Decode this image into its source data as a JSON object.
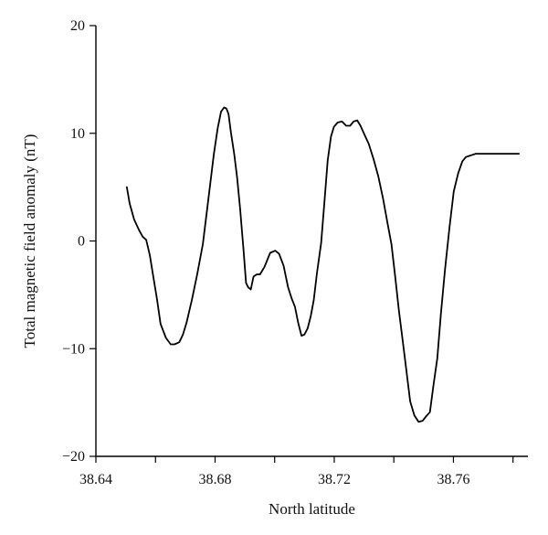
{
  "chart_data": {
    "type": "line",
    "title": "",
    "xlabel": "North latitude",
    "ylabel": "Total magnetic field anomaly (nT)",
    "xlim": [
      38.64,
      38.785
    ],
    "ylim": [
      -20,
      20
    ],
    "x_ticks": [
      38.64,
      38.68,
      38.72,
      38.76
    ],
    "x_tick_labels": [
      "38.64",
      "38.68",
      "38.72",
      "38.76"
    ],
    "x_minor_ticks": [
      38.66,
      38.7,
      38.74,
      38.78
    ],
    "y_ticks": [
      -20,
      -10,
      0,
      10,
      20
    ],
    "y_tick_labels": [
      "−20",
      "−10",
      "0",
      "10",
      "20"
    ],
    "grid": false,
    "series": [
      {
        "color": "#000000",
        "x": [
          38.6504,
          38.6513,
          38.6528,
          38.6545,
          38.6557,
          38.6569,
          38.6581,
          38.6593,
          38.6605,
          38.6617,
          38.6635,
          38.6651,
          38.6664,
          38.668,
          38.6692,
          38.6704,
          38.6722,
          38.674,
          38.6759,
          38.6779,
          38.6796,
          38.6809,
          38.682,
          38.683,
          38.6838,
          38.6845,
          38.6853,
          38.6864,
          38.6874,
          38.6884,
          38.6895,
          38.6904,
          38.6911,
          38.692,
          38.6929,
          38.694,
          38.6951,
          38.6966,
          38.6985,
          38.7002,
          38.7015,
          38.703,
          38.7045,
          38.7058,
          38.7068,
          38.7079,
          38.709,
          38.71,
          38.7111,
          38.7121,
          38.7131,
          38.7142,
          38.7156,
          38.7167,
          38.7178,
          38.7189,
          38.7199,
          38.7211,
          38.7226,
          38.724,
          38.7253,
          38.7265,
          38.7277,
          38.7288,
          38.7301,
          38.7316,
          38.7332,
          38.7348,
          38.7364,
          38.7379,
          38.7392,
          38.7405,
          38.7417,
          38.7429,
          38.7442,
          38.7455,
          38.7469,
          38.7483,
          38.7497,
          38.7508,
          38.7521,
          38.7533,
          38.7546,
          38.7558,
          38.7572,
          38.7587,
          38.7601,
          38.7616,
          38.763,
          38.7642,
          38.7653,
          38.7664,
          38.7675,
          38.7688,
          38.7702,
          38.7716,
          38.7731,
          38.7745,
          38.7758,
          38.7769,
          38.7777,
          38.7784,
          38.7792,
          38.7803,
          38.7812,
          38.782
        ],
        "y": [
          5.0,
          3.5,
          2.0,
          1.0,
          0.4,
          0.1,
          -1.3,
          -3.4,
          -5.4,
          -7.7,
          -9.0,
          -9.6,
          -9.6,
          -9.4,
          -8.7,
          -7.6,
          -5.5,
          -3.1,
          -0.3,
          4.2,
          8.1,
          10.5,
          12.0,
          12.4,
          12.3,
          11.8,
          10.1,
          8.1,
          5.9,
          3.0,
          -0.7,
          -3.9,
          -4.3,
          -4.5,
          -3.3,
          -3.1,
          -3.1,
          -2.4,
          -1.1,
          -0.9,
          -1.2,
          -2.3,
          -4.3,
          -5.4,
          -6.1,
          -7.6,
          -8.8,
          -8.7,
          -8.1,
          -7.0,
          -5.5,
          -3.0,
          -0.2,
          3.6,
          7.5,
          9.7,
          10.6,
          11.0,
          11.1,
          10.7,
          10.7,
          11.1,
          11.2,
          10.7,
          9.9,
          9.0,
          7.6,
          6.0,
          3.9,
          1.6,
          -0.3,
          -3.4,
          -6.5,
          -9.1,
          -12.0,
          -14.9,
          -16.2,
          -16.8,
          -16.7,
          -16.3,
          -15.9,
          -13.4,
          -10.9,
          -6.8,
          -2.6,
          1.3,
          4.6,
          6.3,
          7.4,
          7.8,
          7.9,
          8.0,
          8.1,
          8.1,
          8.1,
          8.1,
          8.1,
          8.1,
          8.1,
          8.1,
          8.1,
          8.1,
          8.1,
          8.1,
          8.1,
          8.1
        ]
      }
    ]
  }
}
